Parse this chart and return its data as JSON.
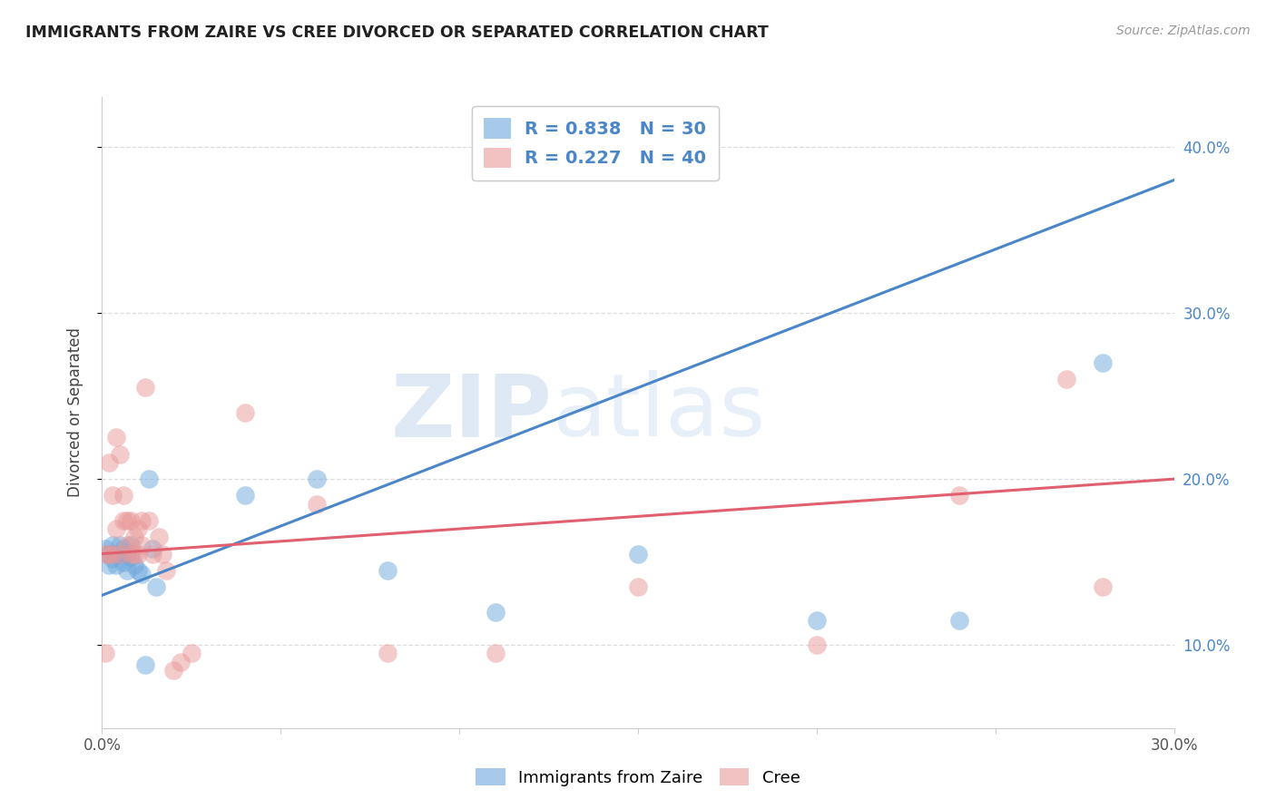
{
  "title": "IMMIGRANTS FROM ZAIRE VS CREE DIVORCED OR SEPARATED CORRELATION CHART",
  "source": "Source: ZipAtlas.com",
  "ylabel": "Divorced or Separated",
  "xlim": [
    0.0,
    0.3
  ],
  "ylim": [
    0.05,
    0.43
  ],
  "x_ticks": [
    0.0,
    0.05,
    0.1,
    0.15,
    0.2,
    0.25,
    0.3
  ],
  "y_ticks": [
    0.1,
    0.2,
    0.3,
    0.4
  ],
  "blue_R": 0.838,
  "blue_N": 30,
  "pink_R": 0.227,
  "pink_N": 40,
  "blue_color": "#6fa8dc",
  "pink_color": "#ea9999",
  "blue_line_color": "#4a86c8",
  "pink_line_color": "#e06070",
  "legend_label_blue": "Immigrants from Zaire",
  "legend_label_pink": "Cree",
  "watermark_zip": "ZIP",
  "watermark_atlas": "atlas",
  "background_color": "#ffffff",
  "grid_color": "#dddddd",
  "blue_scatter_x": [
    0.001,
    0.002,
    0.002,
    0.003,
    0.003,
    0.004,
    0.004,
    0.005,
    0.005,
    0.006,
    0.006,
    0.007,
    0.007,
    0.008,
    0.008,
    0.009,
    0.01,
    0.011,
    0.012,
    0.013,
    0.014,
    0.015,
    0.04,
    0.06,
    0.08,
    0.11,
    0.15,
    0.2,
    0.24,
    0.28
  ],
  "blue_scatter_y": [
    0.158,
    0.155,
    0.148,
    0.16,
    0.152,
    0.155,
    0.148,
    0.16,
    0.155,
    0.158,
    0.15,
    0.155,
    0.145,
    0.16,
    0.153,
    0.148,
    0.145,
    0.143,
    0.088,
    0.2,
    0.158,
    0.135,
    0.19,
    0.2,
    0.145,
    0.12,
    0.155,
    0.115,
    0.115,
    0.27
  ],
  "pink_scatter_x": [
    0.001,
    0.001,
    0.002,
    0.002,
    0.003,
    0.003,
    0.004,
    0.004,
    0.005,
    0.005,
    0.006,
    0.006,
    0.007,
    0.007,
    0.008,
    0.008,
    0.009,
    0.009,
    0.01,
    0.01,
    0.011,
    0.011,
    0.012,
    0.013,
    0.014,
    0.016,
    0.017,
    0.018,
    0.02,
    0.022,
    0.025,
    0.04,
    0.06,
    0.08,
    0.11,
    0.15,
    0.2,
    0.24,
    0.27,
    0.28
  ],
  "pink_scatter_y": [
    0.095,
    0.155,
    0.155,
    0.21,
    0.155,
    0.19,
    0.17,
    0.225,
    0.155,
    0.215,
    0.175,
    0.19,
    0.16,
    0.175,
    0.155,
    0.175,
    0.155,
    0.165,
    0.155,
    0.17,
    0.16,
    0.175,
    0.255,
    0.175,
    0.155,
    0.165,
    0.155,
    0.145,
    0.085,
    0.09,
    0.095,
    0.24,
    0.185,
    0.095,
    0.095,
    0.135,
    0.1,
    0.19,
    0.26,
    0.135
  ],
  "blue_line_x": [
    0.0,
    0.3
  ],
  "blue_line_y": [
    0.13,
    0.38
  ],
  "pink_line_x": [
    0.0,
    0.3
  ],
  "pink_line_y": [
    0.155,
    0.2
  ]
}
